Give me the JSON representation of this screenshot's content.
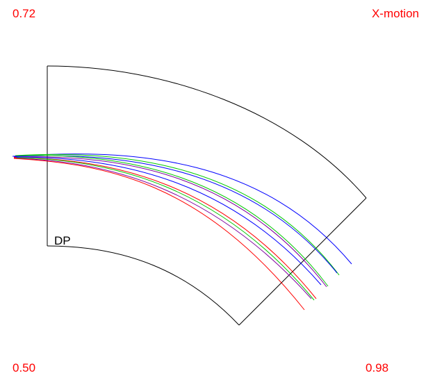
{
  "corner_labels": {
    "top_left": "0.72",
    "top_right": "X-motion",
    "bottom_left": "0.50",
    "bottom_right": "0.98"
  },
  "magnet_label": "DP",
  "colors": {
    "corner_text": "#ff0000",
    "magnet_outline": "#000000",
    "track_blue": "#0000ff",
    "track_green": "#00c800",
    "track_red": "#ff0000",
    "track_purple": "#8000a0"
  }
}
